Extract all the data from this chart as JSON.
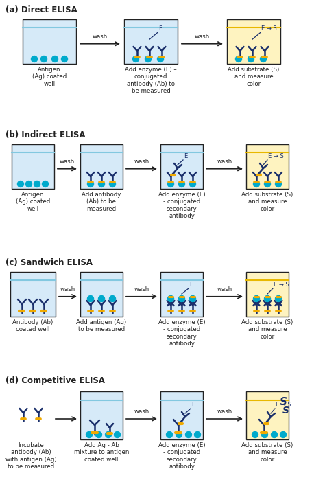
{
  "bg_color": "#ffffff",
  "well_fill_blue": "#d6eaf8",
  "well_fill_yellow": "#fef3c0",
  "well_border": "#222222",
  "water_color_blue": "#82c8e0",
  "water_color_yellow": "#e8b800",
  "ab_dark": "#1a2f6b",
  "ab_yellow": "#f0aa00",
  "antigen_cyan": "#00aacc",
  "arrow_color": "#222222",
  "label_color": "#222222",
  "text_size": 6.2,
  "section_label_size": 8.5,
  "sections": {
    "a_label": "(a) Direct ELISA",
    "b_label": "(b) Indirect ELISA",
    "c_label": "(c) Sandwich ELISA",
    "d_label": "(d) Competitive ELISA"
  },
  "step_labels": {
    "a1": "Antigen\n(Ag) coated\nwell",
    "a2": "Add enzyme (E) –\nconjugated\nantibody (Ab) to\nbe measured",
    "a3": "Add substrate (S)\nand measure\ncolor",
    "b1": "Antigen\n(Ag) coated\nwell",
    "b2": "Add antibody\n(Ab) to be\nmeasured",
    "b3": "Add enzyme (E)\n- conjugated\nsecondary\nantibody",
    "b4": "Add substrate (S)\nand measure\ncolor",
    "c1": "Antibody (Ab)\ncoated well",
    "c2": "Add antigen (Ag)\nto be measured",
    "c3": "Add enzyme (E)\n- conjugated\nsecondary\nantibody",
    "c4": "Add substrate (S)\nand measure\ncolor",
    "d1": "Incubate\nantibody (Ab)\nwith antigen (Ag)\nto be measured",
    "d2": "Add Ag - Ab\nmixture to antigen\ncoated well",
    "d3": "Add enzyme (E)\n- conjugated\nsecondary\nantibody",
    "d4": "Add substrate (S)\nand measure\ncolor"
  }
}
